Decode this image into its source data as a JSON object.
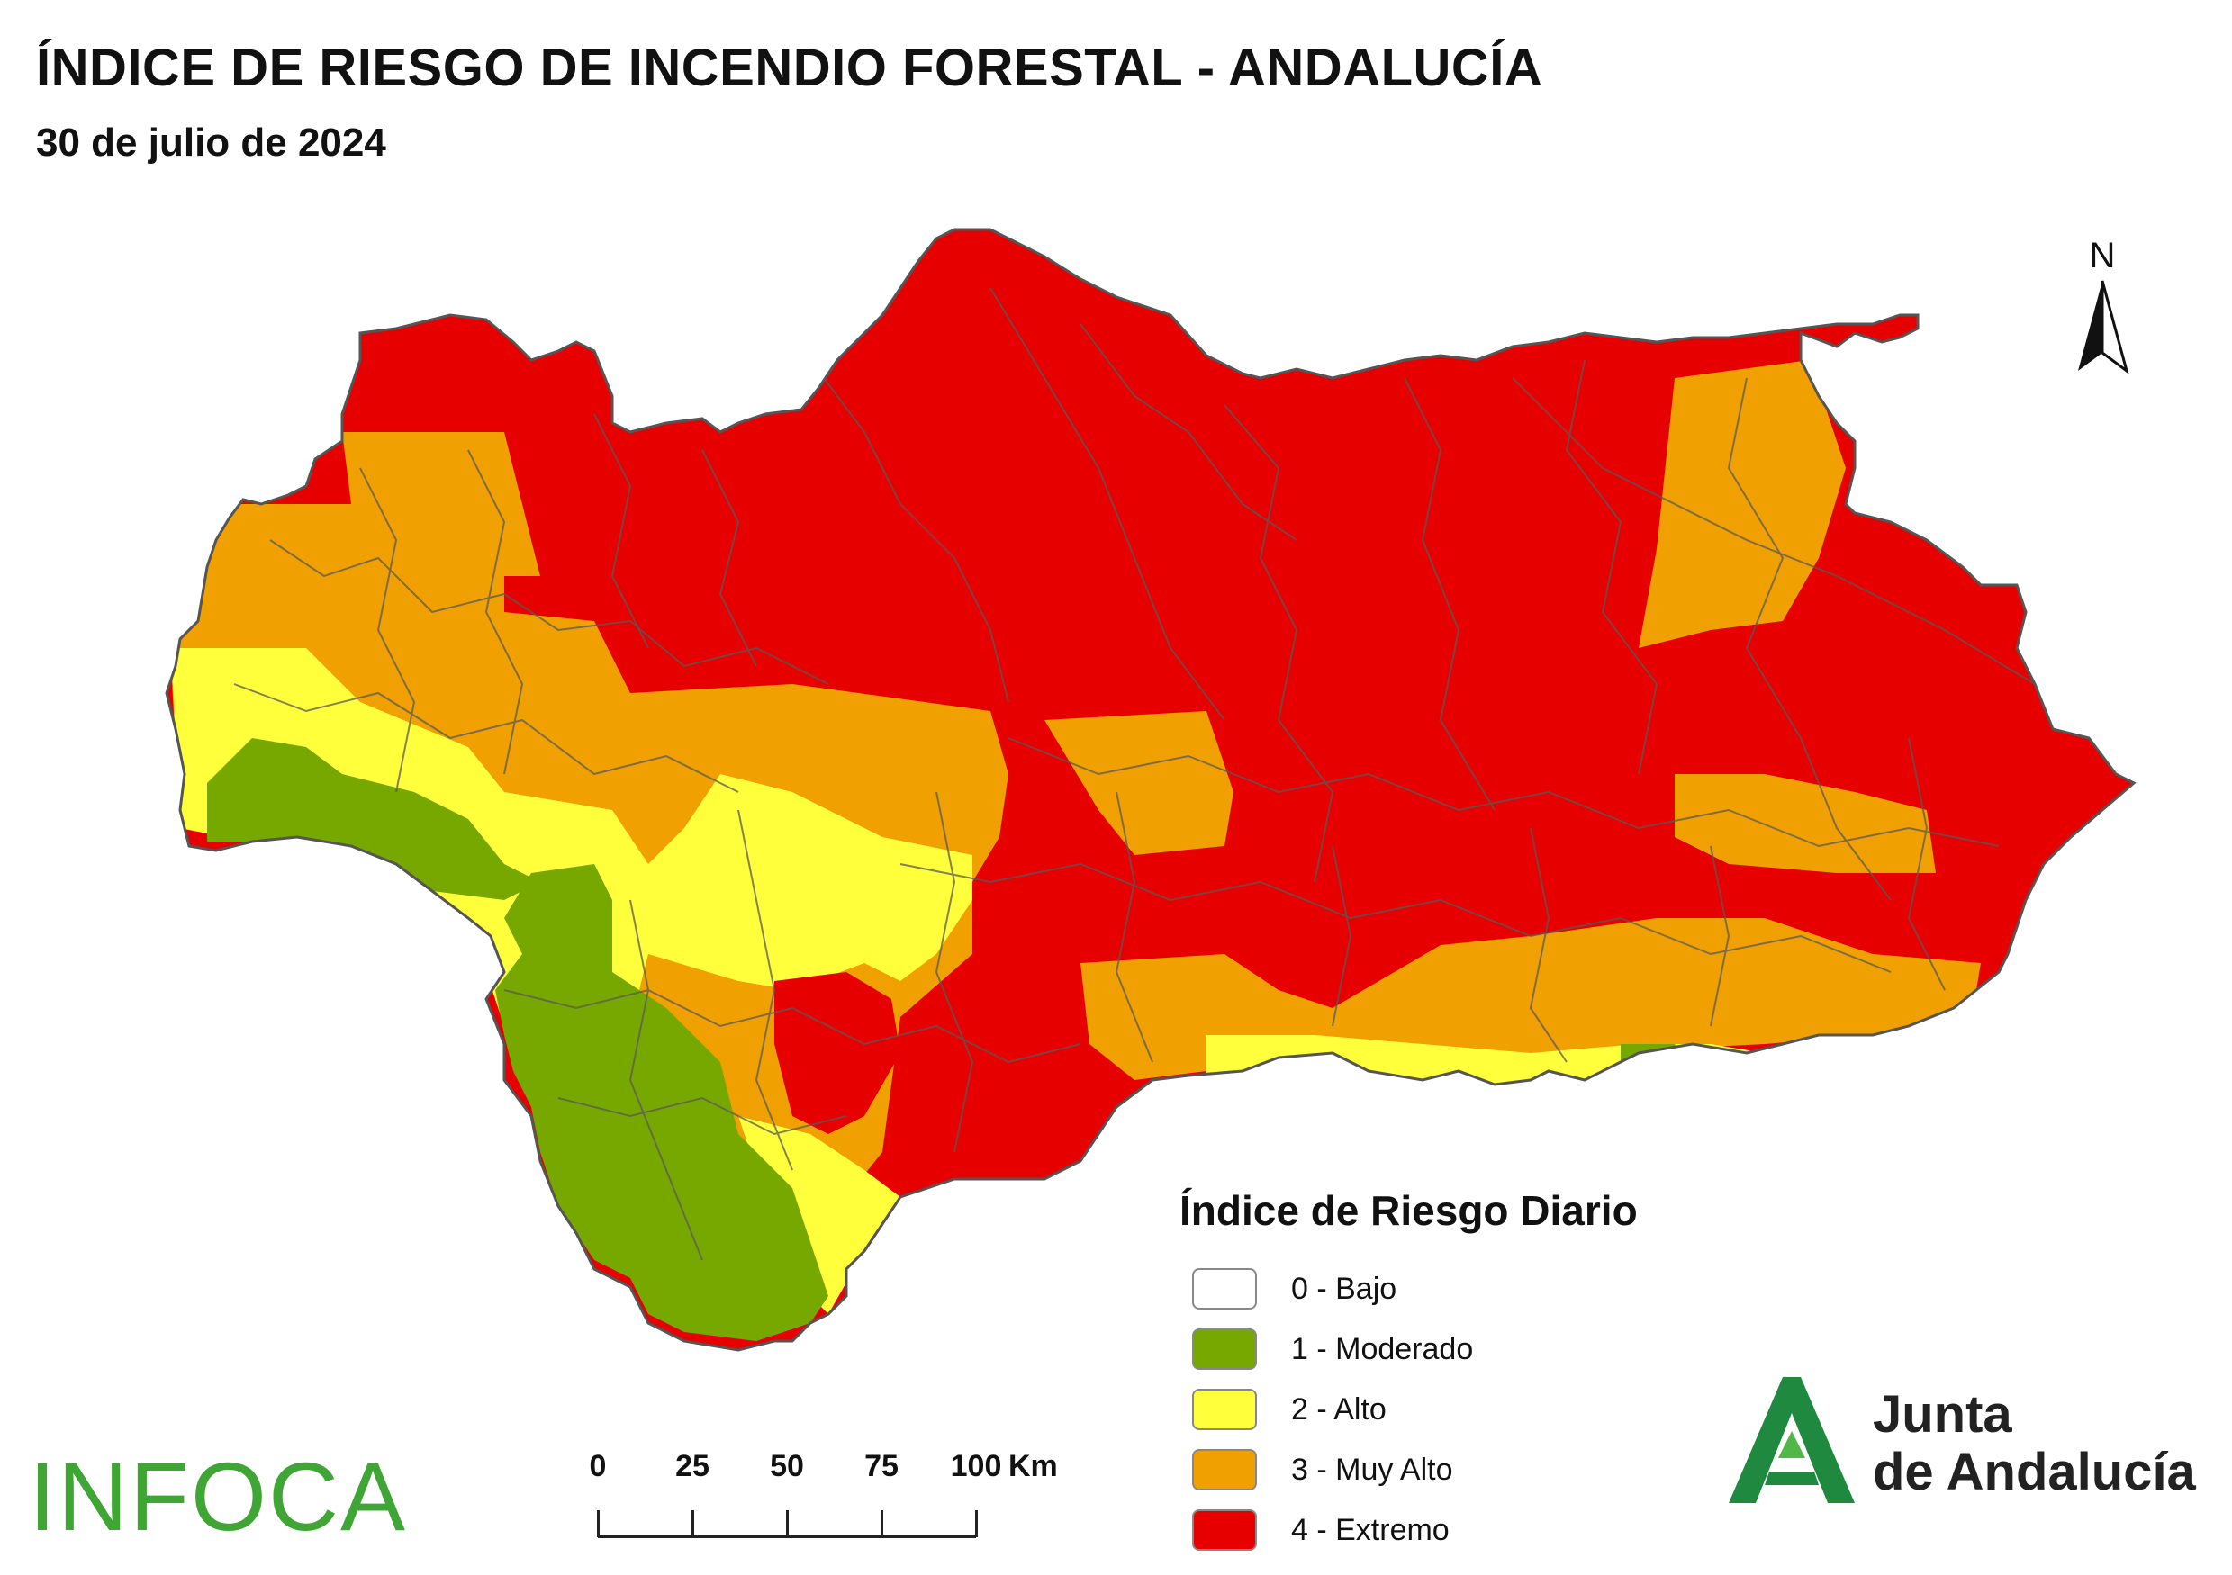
{
  "title": "ÍNDICE DE RIESGO DE INCENDIO FORESTAL - ANDALUCÍA",
  "subtitle": "30 de julio de 2024",
  "north_arrow": {
    "label": "N",
    "icon": "north-arrow-icon"
  },
  "legend": {
    "title": "Índice de Riesgo Diario",
    "items": [
      {
        "label": "0 - Bajo",
        "color": "#ffffff"
      },
      {
        "label": "1 - Moderado",
        "color": "#76a800"
      },
      {
        "label": "2 - Alto",
        "color": "#ffff3c"
      },
      {
        "label": "3 - Muy Alto",
        "color": "#f0a000"
      },
      {
        "label": "4 - Extremo",
        "color": "#e60000"
      }
    ]
  },
  "scale_bar": {
    "ticks": [
      "0",
      "25",
      "50",
      "75",
      "100"
    ],
    "unit": "Km"
  },
  "logos": {
    "infoca": "INFOCA",
    "junta_line1": "Junta",
    "junta_line2": "de Andalucía",
    "junta_color": "#1f8a3f"
  },
  "map_colors": {
    "border": "#555555",
    "extremo": "#e60000",
    "muy_alto": "#f0a000",
    "alto": "#ffff3c",
    "moderado": "#76a800"
  }
}
